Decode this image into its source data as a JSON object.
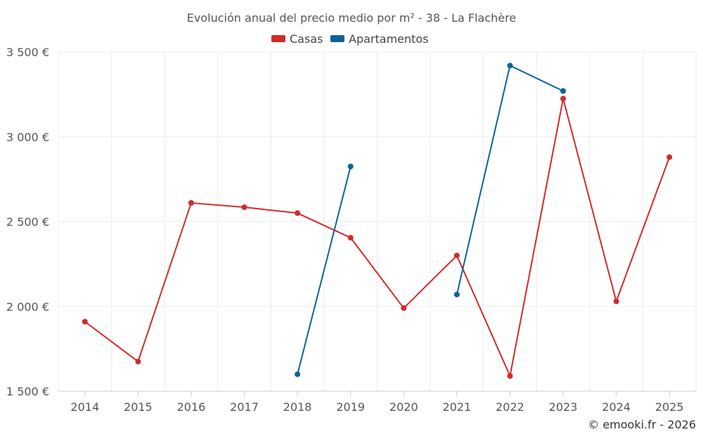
{
  "chart_data": {
    "type": "line",
    "title": "Evolución anual del precio medio por m² - 38 - La Flachère",
    "xlabel": "",
    "ylabel": "",
    "categories": [
      "2014",
      "2015",
      "2016",
      "2017",
      "2018",
      "2019",
      "2020",
      "2021",
      "2022",
      "2023",
      "2024",
      "2025"
    ],
    "y_ticks": [
      1500,
      2000,
      2500,
      3000,
      3500
    ],
    "y_tick_labels": [
      "1 500 €",
      "2 000 €",
      "2 500 €",
      "3 000 €",
      "3 500 €"
    ],
    "ylim": [
      1500,
      3500
    ],
    "grid": true,
    "legend_position": "top-center",
    "series": [
      {
        "name": "Casas",
        "color": "#d32a2a",
        "values": [
          1910,
          1675,
          2610,
          2585,
          2550,
          2405,
          1990,
          2300,
          1590,
          3225,
          2030,
          2880
        ]
      },
      {
        "name": "Apartamentos",
        "color": "#0b6399",
        "values": [
          null,
          null,
          null,
          null,
          1600,
          2825,
          null,
          2070,
          3420,
          3270,
          null,
          null
        ]
      }
    ],
    "credit": "© emooki.fr - 2026"
  }
}
